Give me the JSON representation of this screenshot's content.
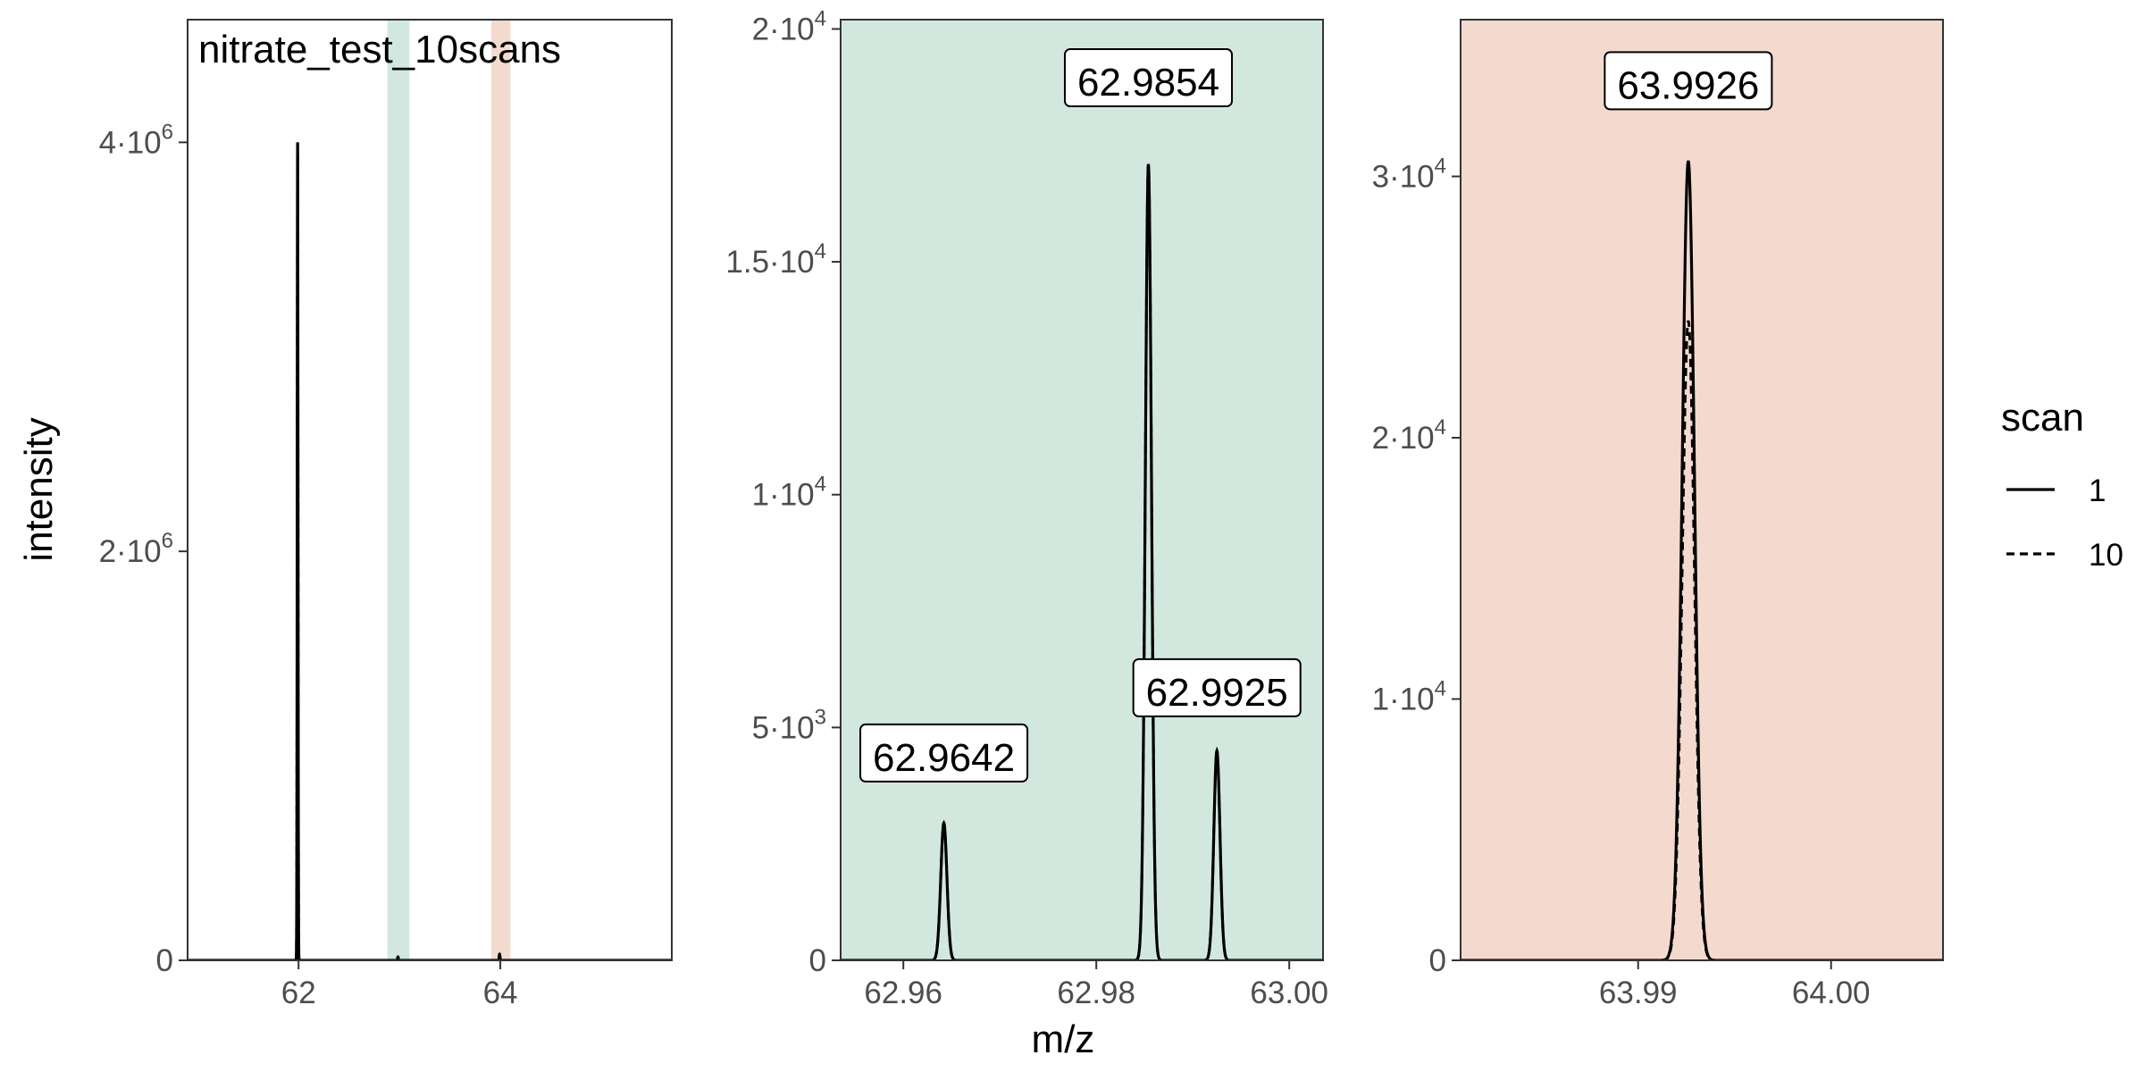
{
  "chart_data": {
    "type": "line",
    "xlabel": "m/z",
    "ylabel": "intensity",
    "legend": {
      "title": "scan",
      "placement": "right",
      "entries": [
        {
          "label": "1",
          "linetype": "solid"
        },
        {
          "label": "10",
          "linetype": "dashed"
        }
      ]
    },
    "highlight_colors": {
      "band_1": "#d2e8df",
      "band_2": "#f4dace"
    },
    "panels": [
      {
        "annotation": "nitrate_test_10scans",
        "background": "#ffffff",
        "xlim": [
          60.9,
          65.7
        ],
        "ylim": [
          0,
          4600000
        ],
        "xticks": [
          62,
          64
        ],
        "xticklabels": [
          "62",
          "64"
        ],
        "yticks": [
          0,
          2000000,
          4000000
        ],
        "yticklabels": [
          {
            "mant": "0",
            "exp": ""
          },
          {
            "mant": "2",
            "exp": "6"
          },
          {
            "mant": "4",
            "exp": "6"
          }
        ],
        "bands": [
          {
            "xmin": 62.88,
            "xmax": 63.1,
            "color": "band_1"
          },
          {
            "xmin": 63.91,
            "xmax": 64.1,
            "color": "band_2"
          }
        ],
        "peaks": [
          {
            "x": 61.9906,
            "y": 4000000,
            "width": 0.004
          },
          {
            "x": 62.9854,
            "y": 17100,
            "width": 0.004
          },
          {
            "x": 63.9926,
            "y": 30600,
            "width": 0.004
          }
        ],
        "labels": []
      },
      {
        "annotation": "",
        "background": "band_1",
        "xlim": [
          62.9535,
          63.0035
        ],
        "ylim": [
          0,
          20200
        ],
        "xticks": [
          62.96,
          62.98,
          63.0
        ],
        "xticklabels": [
          "62.96",
          "62.98",
          "63.00"
        ],
        "yticks": [
          0,
          5000,
          10000,
          15000,
          20000
        ],
        "yticklabels": [
          {
            "mant": "0",
            "exp": ""
          },
          {
            "mant": "5",
            "exp": "3"
          },
          {
            "mant": "1",
            "exp": "4"
          },
          {
            "mant": "1.5",
            "exp": "4"
          },
          {
            "mant": "2",
            "exp": "4"
          }
        ],
        "bands": [],
        "peaks": [
          {
            "x": 62.9642,
            "y": 2950,
            "width": 0.00032
          },
          {
            "x": 62.9854,
            "y": 17100,
            "width": 0.00032
          },
          {
            "x": 62.9925,
            "y": 4500,
            "width": 0.00032
          }
        ],
        "labels": [
          {
            "x": 62.9642,
            "y": 3800,
            "text": "62.9642"
          },
          {
            "x": 62.9854,
            "y": 18300,
            "text": "62.9854"
          },
          {
            "x": 62.9925,
            "y": 5200,
            "text": "62.9925"
          }
        ]
      },
      {
        "annotation": "",
        "background": "band_2",
        "xlim": [
          63.9808,
          64.0058
        ],
        "ylim": [
          0,
          36000
        ],
        "xticks": [
          63.99,
          64.0
        ],
        "xticklabels": [
          "63.99",
          "64.00"
        ],
        "yticks": [
          0,
          10000,
          20000,
          30000
        ],
        "yticklabels": [
          {
            "mant": "0",
            "exp": ""
          },
          {
            "mant": "1",
            "exp": "4"
          },
          {
            "mant": "2",
            "exp": "4"
          },
          {
            "mant": "3",
            "exp": "4"
          }
        ],
        "bands": [],
        "peaks": [
          {
            "x": 63.9926,
            "y": 30600,
            "width": 0.00032
          }
        ],
        "peaks_scan10_ratio": 0.8,
        "labels": [
          {
            "x": 63.9926,
            "y": 32500,
            "text": "63.9926"
          }
        ]
      }
    ]
  }
}
